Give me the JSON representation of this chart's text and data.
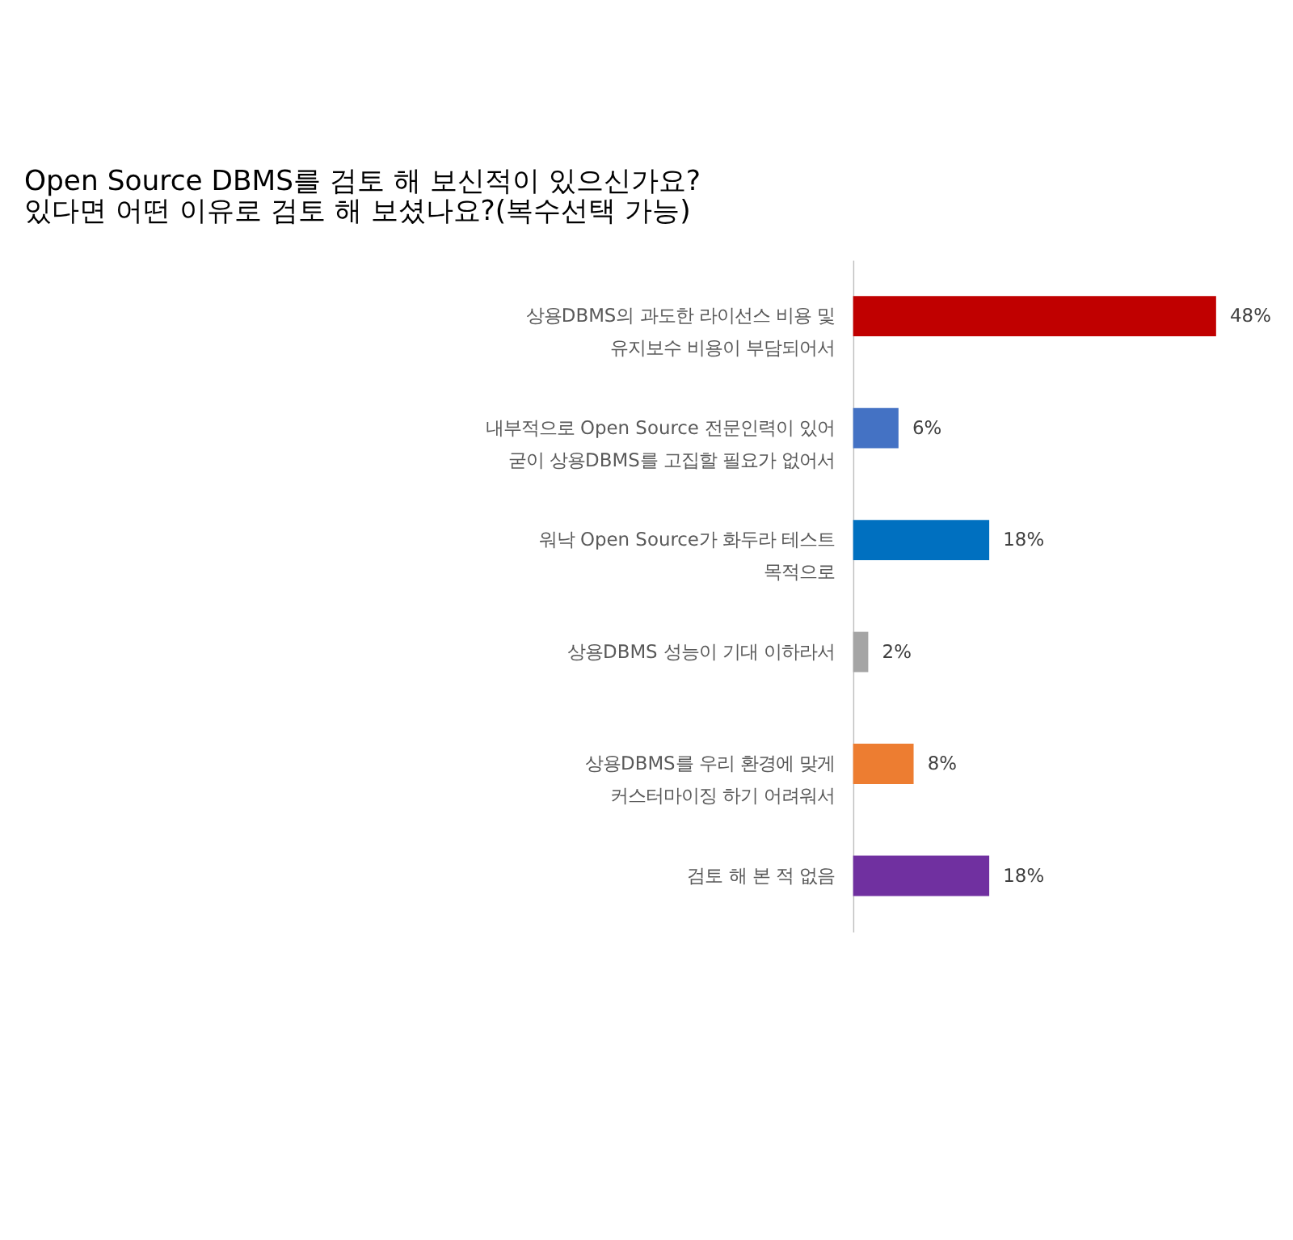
{
  "chart_data": {
    "type": "bar",
    "orientation": "horizontal",
    "title": [
      "Open Source DBMS를 검토 해 보신적이 있으신가요?",
      "있다면 어떤 이유로 검토 해 보셨나요?(복수선택 가능)"
    ],
    "categories": [
      "상용DBMS의 과도한 라이선스 비용 및\n유지보수 비용이 부담되어서",
      "내부적으로 Open Source 전문인력이 있어\n굳이 상용DBMS를 고집할 필요가 없어서",
      "워낙 Open Source가 화두라 테스트\n목적으로",
      "상용DBMS 성능이 기대 이하라서",
      "상용DBMS를 우리 환경에 맞게\n커스터마이징 하기 어려워서",
      "검토 해 본 적 없음"
    ],
    "values": [
      48,
      6,
      18,
      2,
      8,
      18
    ],
    "colors": [
      "#c00000",
      "#4472c4",
      "#0070c0",
      "#a5a5a5",
      "#ed7d31",
      "#7030a0"
    ],
    "value_labels": [
      "48%",
      "6%",
      "18%",
      "2%",
      "8%",
      "18%"
    ],
    "grid": false
  }
}
